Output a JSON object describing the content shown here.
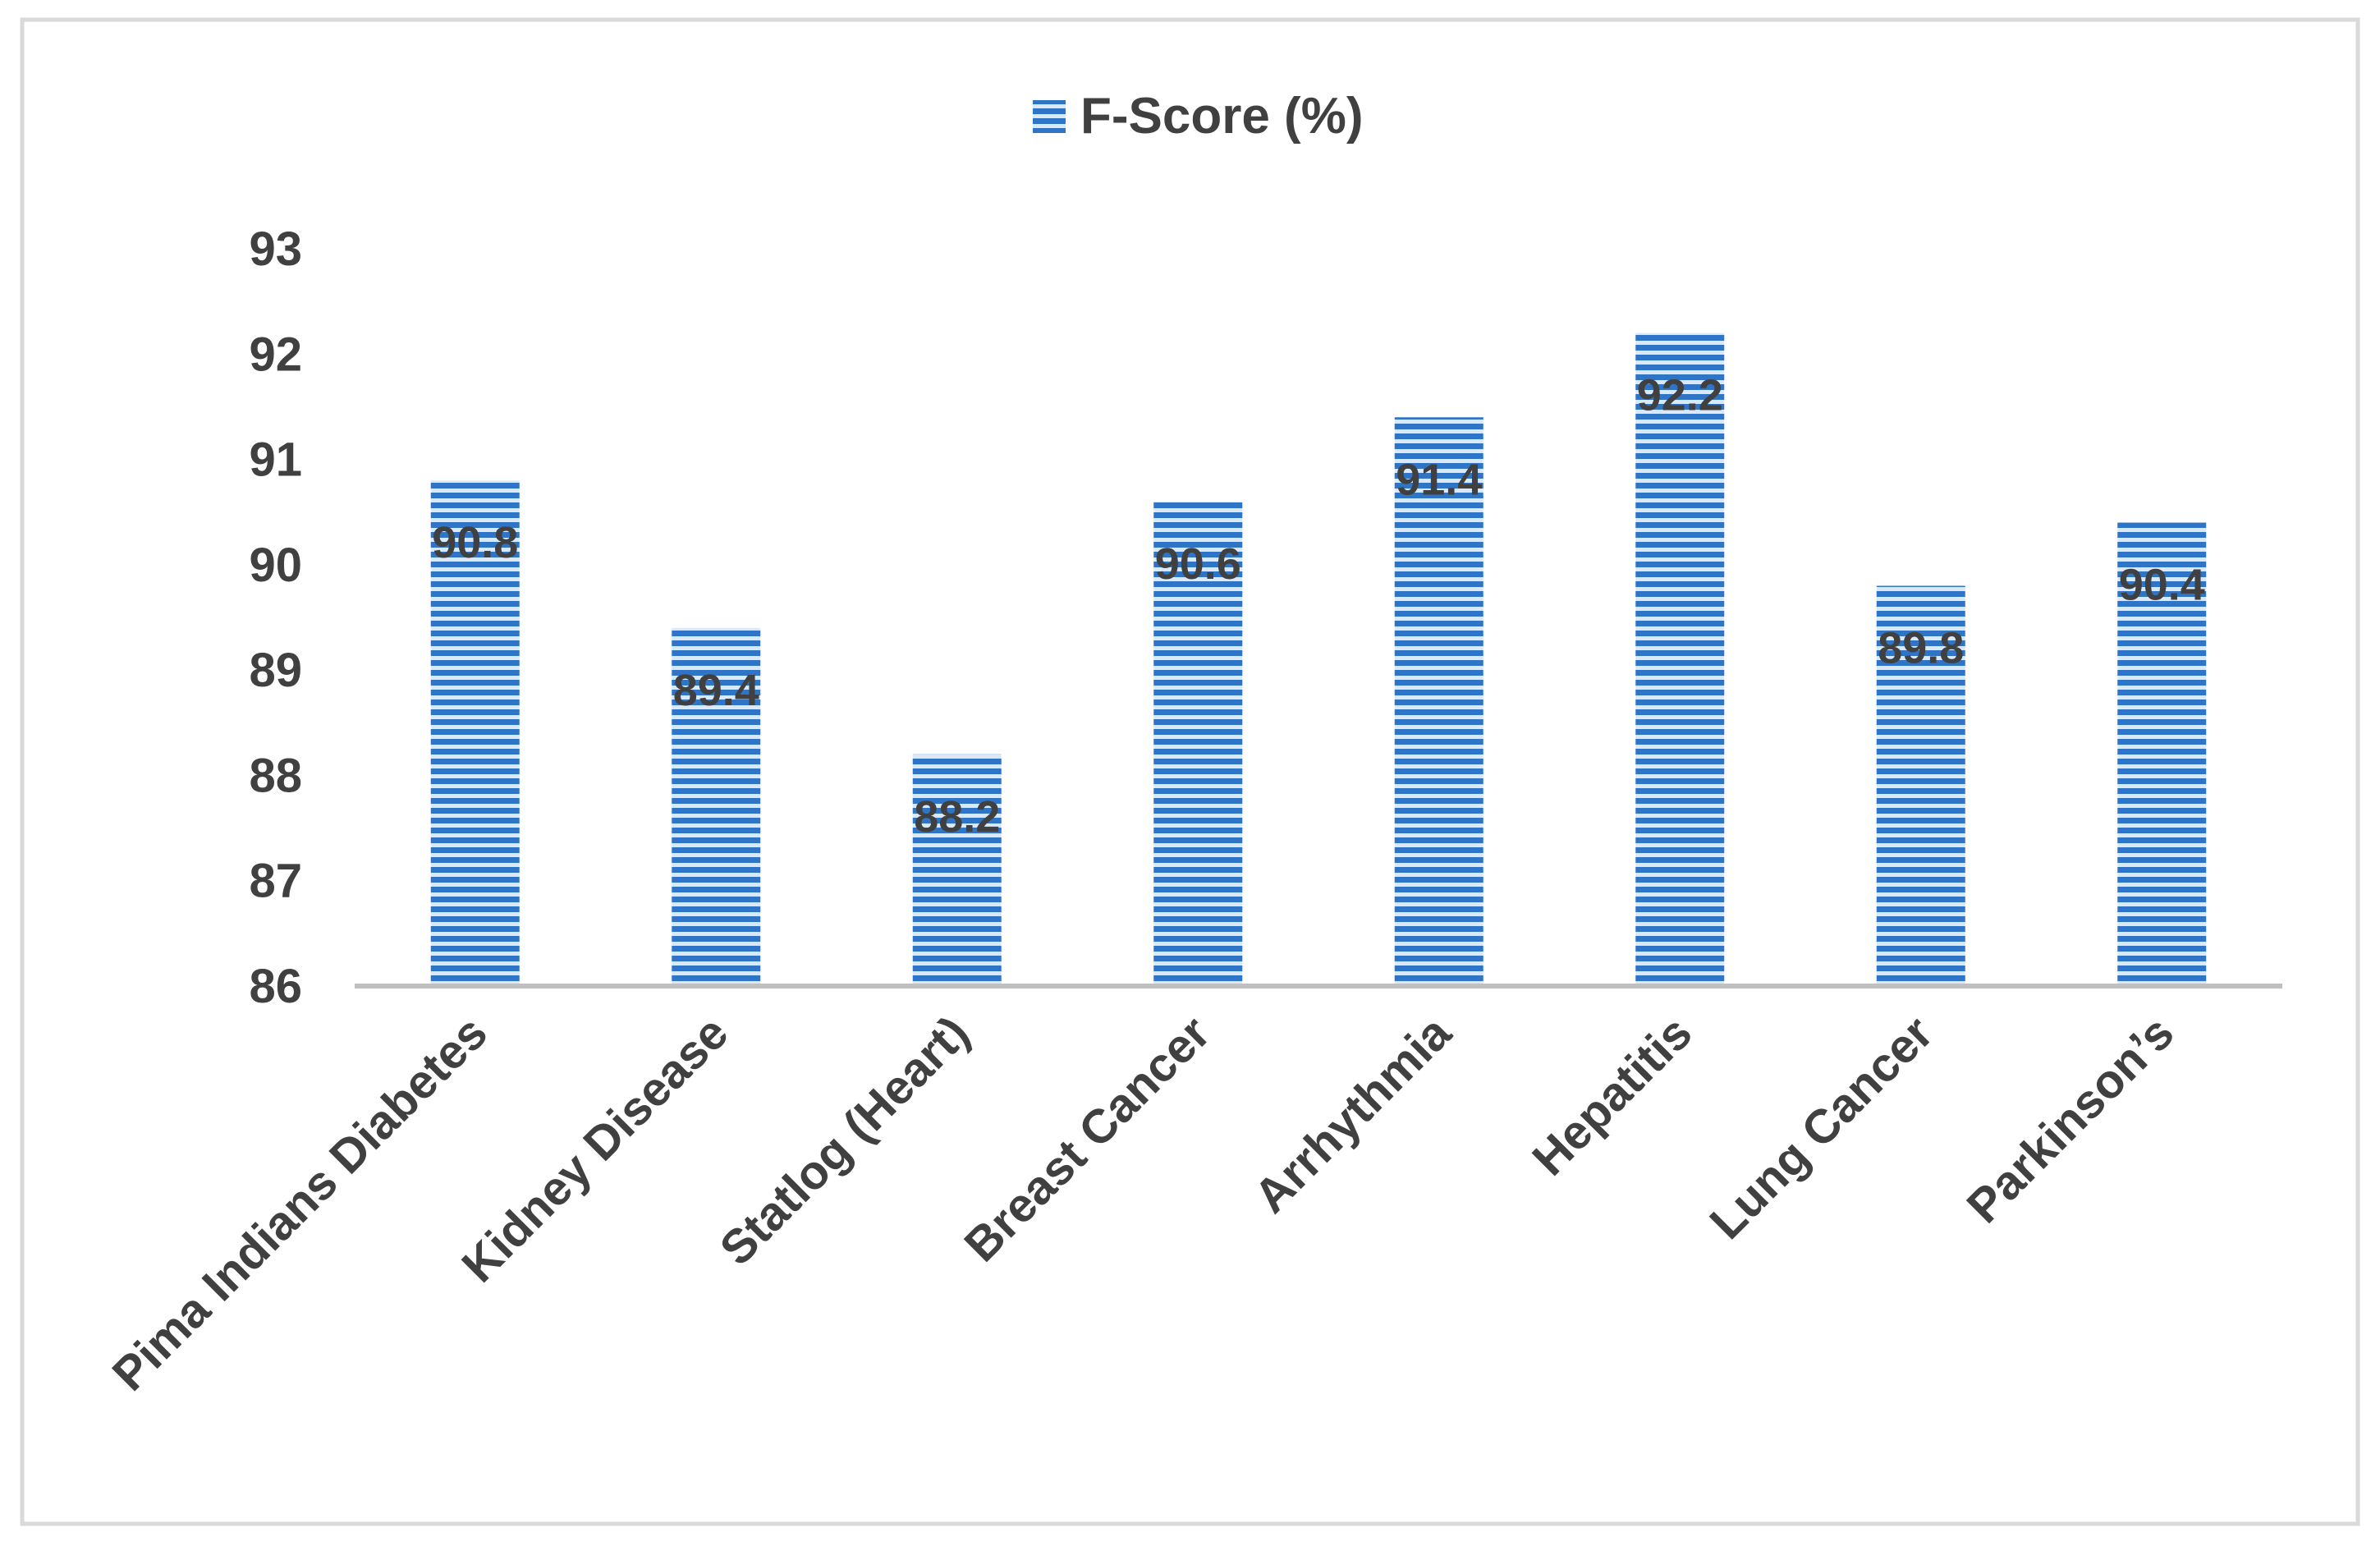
{
  "chart_data": {
    "type": "bar",
    "categories": [
      "Pima Indians Diabetes",
      "Kidney Disease",
      "Statlog (Heart)",
      "Breast Cancer",
      "Arrhythmia",
      "Hepatitis",
      "Lung Cancer",
      "Parkinson’s"
    ],
    "series": [
      {
        "name": "F-Score (%)",
        "values": [
          90.8,
          89.4,
          88.2,
          90.6,
          91.4,
          92.2,
          89.8,
          90.4
        ],
        "color": "#2E75C8"
      }
    ],
    "ylim": [
      86,
      93
    ],
    "yticks": [
      86,
      87,
      88,
      89,
      90,
      91,
      92,
      93
    ],
    "grid": false,
    "legend_position": "top-center",
    "data_labels": true,
    "bar_pattern": "horizontal-stripes"
  }
}
